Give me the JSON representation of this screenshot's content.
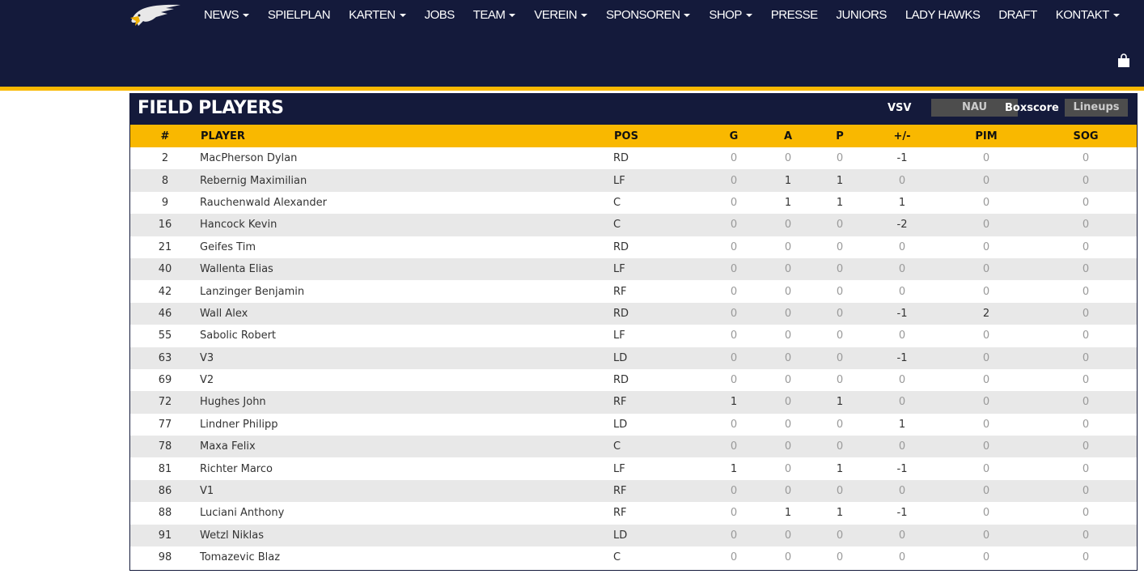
{
  "nav": {
    "items": [
      {
        "label": "NEWS",
        "dropdown": true
      },
      {
        "label": "SPIELPLAN",
        "dropdown": false
      },
      {
        "label": "KARTEN",
        "dropdown": true
      },
      {
        "label": "JOBS",
        "dropdown": false
      },
      {
        "label": "TEAM",
        "dropdown": true
      },
      {
        "label": "VEREIN",
        "dropdown": true
      },
      {
        "label": "SPONSOREN",
        "dropdown": true
      },
      {
        "label": "SHOP",
        "dropdown": true
      },
      {
        "label": "PRESSE",
        "dropdown": false
      },
      {
        "label": "JUNIORS",
        "dropdown": false
      },
      {
        "label": "LADY HAWKS",
        "dropdown": false
      },
      {
        "label": "DRAFT",
        "dropdown": false
      },
      {
        "label": "KONTAKT",
        "dropdown": true
      }
    ],
    "cart_icon": "shopping-bag-icon"
  },
  "panel": {
    "title": "FIELD PLAYERS",
    "team_home": "VSV",
    "team_away": "NAU",
    "boxscore": "Boxscore",
    "lineups": "Lineups"
  },
  "colors": {
    "navy": "#141a3b",
    "gold": "#f9b800",
    "button": "#4d4d4d"
  },
  "table": {
    "headers": [
      "#",
      "PLAYER",
      "POS",
      "G",
      "A",
      "P",
      "+/-",
      "PIM",
      "SOG"
    ],
    "rows": [
      [
        "2",
        "MacPherson Dylan",
        "RD",
        "0",
        "0",
        "0",
        "-1",
        "0",
        "0"
      ],
      [
        "8",
        "Rebernig Maximilian",
        "LF",
        "0",
        "1",
        "1",
        "0",
        "0",
        "0"
      ],
      [
        "9",
        "Rauchenwald Alexander",
        "C",
        "0",
        "1",
        "1",
        "1",
        "0",
        "0"
      ],
      [
        "16",
        "Hancock Kevin",
        "C",
        "0",
        "0",
        "0",
        "-2",
        "0",
        "0"
      ],
      [
        "21",
        "Geifes Tim",
        "RD",
        "0",
        "0",
        "0",
        "0",
        "0",
        "0"
      ],
      [
        "40",
        "Wallenta Elias",
        "LF",
        "0",
        "0",
        "0",
        "0",
        "0",
        "0"
      ],
      [
        "42",
        "Lanzinger Benjamin",
        "RF",
        "0",
        "0",
        "0",
        "0",
        "0",
        "0"
      ],
      [
        "46",
        "Wall Alex",
        "RD",
        "0",
        "0",
        "0",
        "-1",
        "2",
        "0"
      ],
      [
        "55",
        "Sabolic Robert",
        "LF",
        "0",
        "0",
        "0",
        "0",
        "0",
        "0"
      ],
      [
        "63",
        "V3",
        "LD",
        "0",
        "0",
        "0",
        "-1",
        "0",
        "0"
      ],
      [
        "69",
        "V2",
        "RD",
        "0",
        "0",
        "0",
        "0",
        "0",
        "0"
      ],
      [
        "72",
        "Hughes John",
        "RF",
        "1",
        "0",
        "1",
        "0",
        "0",
        "0"
      ],
      [
        "77",
        "Lindner Philipp",
        "LD",
        "0",
        "0",
        "0",
        "1",
        "0",
        "0"
      ],
      [
        "78",
        "Maxa Felix",
        "C",
        "0",
        "0",
        "0",
        "0",
        "0",
        "0"
      ],
      [
        "81",
        "Richter Marco",
        "LF",
        "1",
        "0",
        "1",
        "-1",
        "0",
        "0"
      ],
      [
        "86",
        "V1",
        "RF",
        "0",
        "0",
        "0",
        "0",
        "0",
        "0"
      ],
      [
        "88",
        "Luciani Anthony",
        "RF",
        "0",
        "1",
        "1",
        "-1",
        "0",
        "0"
      ],
      [
        "91",
        "Wetzl Niklas",
        "LD",
        "0",
        "0",
        "0",
        "0",
        "0",
        "0"
      ],
      [
        "98",
        "Tomazevic Blaz",
        "C",
        "0",
        "0",
        "0",
        "0",
        "0",
        "0"
      ]
    ]
  }
}
